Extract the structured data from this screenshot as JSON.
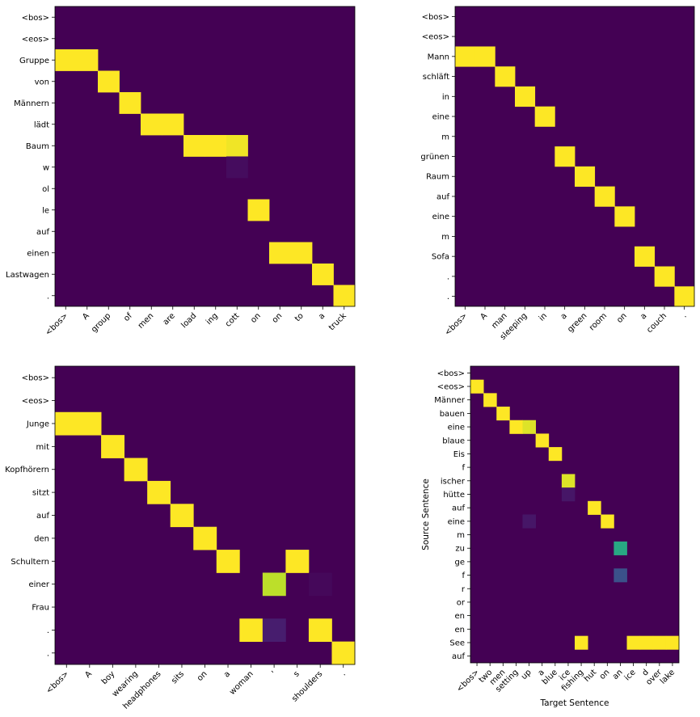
{
  "colors": {
    "background": "#440154",
    "high": "#fde725",
    "frame": "#000000",
    "viridis": [
      "#440154",
      "#482878",
      "#3e4989",
      "#31688e",
      "#26828e",
      "#1f9e89",
      "#35b779",
      "#6ece58",
      "#b5de2b",
      "#fde725"
    ]
  },
  "chart_data": [
    {
      "type": "heatmap",
      "title": "",
      "xlabel": "",
      "ylabel": "",
      "x_labels": [
        "<bos>",
        "A",
        "group",
        "of",
        "men",
        "are",
        "load",
        "ing",
        "cott",
        "on",
        "on",
        "to",
        "a",
        "truck"
      ],
      "y_labels": [
        "<bos>",
        "<eos>",
        "Gruppe",
        "von",
        "Männern",
        "lädt",
        "Baum",
        "w",
        "ol",
        "le",
        "auf",
        "einen",
        "Lastwagen",
        "."
      ],
      "cells": [
        {
          "row": 2,
          "col": 0,
          "value": 1.0
        },
        {
          "row": 2,
          "col": 1,
          "value": 1.0
        },
        {
          "row": 3,
          "col": 2,
          "value": 1.0
        },
        {
          "row": 4,
          "col": 3,
          "value": 1.0
        },
        {
          "row": 5,
          "col": 4,
          "value": 1.0
        },
        {
          "row": 5,
          "col": 5,
          "value": 1.0
        },
        {
          "row": 6,
          "col": 6,
          "value": 1.0
        },
        {
          "row": 6,
          "col": 7,
          "value": 1.0
        },
        {
          "row": 6,
          "col": 8,
          "value": 0.98
        },
        {
          "row": 7,
          "col": 8,
          "value": 0.03
        },
        {
          "row": 9,
          "col": 9,
          "value": 1.0
        },
        {
          "row": 11,
          "col": 10,
          "value": 1.0
        },
        {
          "row": 11,
          "col": 11,
          "value": 1.0
        },
        {
          "row": 12,
          "col": 12,
          "value": 1.0
        },
        {
          "row": 13,
          "col": 13,
          "value": 1.0
        }
      ]
    },
    {
      "type": "heatmap",
      "title": "",
      "xlabel": "",
      "ylabel": "",
      "x_labels": [
        "<bos>",
        "A",
        "man",
        "sleeping",
        "in",
        "a",
        "green",
        "room",
        "on",
        "a",
        "couch",
        "."
      ],
      "y_labels": [
        "<bos>",
        "<eos>",
        "Mann",
        "schläft",
        "in",
        "eine",
        "m",
        "grünen",
        "Raum",
        "auf",
        "eine",
        "m",
        "Sofa",
        ".",
        "."
      ],
      "cells": [
        {
          "row": 2,
          "col": 0,
          "value": 1.0
        },
        {
          "row": 2,
          "col": 1,
          "value": 1.0
        },
        {
          "row": 3,
          "col": 2,
          "value": 1.0
        },
        {
          "row": 4,
          "col": 3,
          "value": 1.0
        },
        {
          "row": 5,
          "col": 4,
          "value": 1.0
        },
        {
          "row": 7,
          "col": 5,
          "value": 1.0
        },
        {
          "row": 8,
          "col": 6,
          "value": 1.0
        },
        {
          "row": 9,
          "col": 7,
          "value": 1.0
        },
        {
          "row": 10,
          "col": 8,
          "value": 1.0
        },
        {
          "row": 12,
          "col": 9,
          "value": 1.0
        },
        {
          "row": 13,
          "col": 10,
          "value": 1.0
        },
        {
          "row": 14,
          "col": 11,
          "value": 1.0
        }
      ]
    },
    {
      "type": "heatmap",
      "title": "",
      "xlabel": "",
      "ylabel": "",
      "x_labels": [
        "<bos>",
        "A",
        "boy",
        "wearing",
        "headphones",
        "sits",
        "on",
        "a",
        "woman",
        "'",
        "s",
        "shoulders",
        "."
      ],
      "y_labels": [
        "<bos>",
        "<eos>",
        "Junge",
        "mit",
        "Kopfhörern",
        "sitzt",
        "auf",
        "den",
        "Schultern",
        "einer",
        "Frau",
        ".",
        "."
      ],
      "cells": [
        {
          "row": 2,
          "col": 0,
          "value": 1.0
        },
        {
          "row": 2,
          "col": 1,
          "value": 1.0
        },
        {
          "row": 3,
          "col": 2,
          "value": 1.0
        },
        {
          "row": 4,
          "col": 3,
          "value": 1.0
        },
        {
          "row": 5,
          "col": 4,
          "value": 1.0
        },
        {
          "row": 6,
          "col": 5,
          "value": 1.0
        },
        {
          "row": 7,
          "col": 6,
          "value": 1.0
        },
        {
          "row": 8,
          "col": 7,
          "value": 1.0
        },
        {
          "row": 8,
          "col": 10,
          "value": 1.0
        },
        {
          "row": 9,
          "col": 9,
          "value": 0.9
        },
        {
          "row": 9,
          "col": 11,
          "value": 0.02
        },
        {
          "row": 11,
          "col": 8,
          "value": 1.0
        },
        {
          "row": 11,
          "col": 9,
          "value": 0.08
        },
        {
          "row": 11,
          "col": 11,
          "value": 1.0
        },
        {
          "row": 12,
          "col": 12,
          "value": 1.0
        }
      ]
    },
    {
      "type": "heatmap",
      "title": "",
      "xlabel": "Target Sentence",
      "ylabel": "Source Sentence",
      "x_labels": [
        "<bos>",
        "two",
        "men",
        "setting",
        "up",
        "a",
        "blue",
        "ice",
        "fishing",
        "hut",
        "on",
        "an",
        "ice",
        "d",
        "over",
        "lake"
      ],
      "y_labels": [
        "<bos>",
        "<eos>",
        "Männer",
        "bauen",
        "eine",
        "blaue",
        "Eis",
        "f",
        "ischer",
        "hütte",
        "auf",
        "eine",
        "m",
        "zu",
        "ge",
        "f",
        "r",
        "or",
        "en",
        "en",
        "See",
        "auf"
      ],
      "cells": [
        {
          "row": 1,
          "col": 0,
          "value": 1.0
        },
        {
          "row": 2,
          "col": 1,
          "value": 1.0
        },
        {
          "row": 3,
          "col": 2,
          "value": 1.0
        },
        {
          "row": 4,
          "col": 3,
          "value": 1.0
        },
        {
          "row": 4,
          "col": 4,
          "value": 0.95
        },
        {
          "row": 5,
          "col": 5,
          "value": 1.0
        },
        {
          "row": 6,
          "col": 6,
          "value": 1.0
        },
        {
          "row": 8,
          "col": 7,
          "value": 0.95
        },
        {
          "row": 9,
          "col": 7,
          "value": 0.06
        },
        {
          "row": 10,
          "col": 9,
          "value": 1.0
        },
        {
          "row": 11,
          "col": 4,
          "value": 0.06
        },
        {
          "row": 11,
          "col": 10,
          "value": 1.0
        },
        {
          "row": 13,
          "col": 11,
          "value": 0.6
        },
        {
          "row": 15,
          "col": 11,
          "value": 0.25
        },
        {
          "row": 20,
          "col": 8,
          "value": 1.0
        },
        {
          "row": 20,
          "col": 12,
          "value": 1.0
        },
        {
          "row": 20,
          "col": 13,
          "value": 1.0
        },
        {
          "row": 20,
          "col": 14,
          "value": 1.0
        },
        {
          "row": 20,
          "col": 15,
          "value": 1.0
        }
      ]
    }
  ]
}
